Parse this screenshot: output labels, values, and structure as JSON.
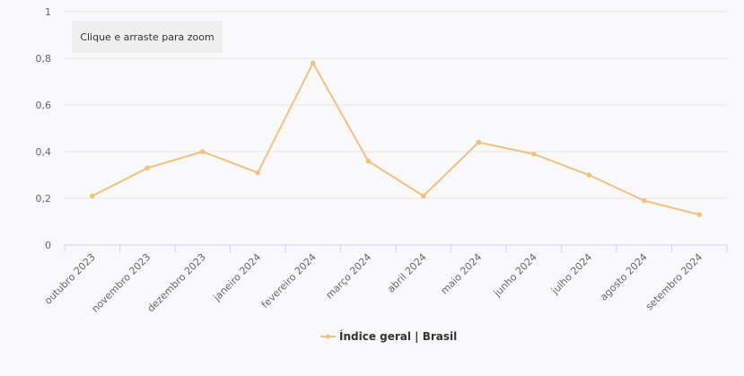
{
  "zoom_hint": "Clique e arraste para zoom",
  "legend": {
    "label": "Índice geral | Brasil"
  },
  "colors": {
    "series": "#f0c27b",
    "grid": "#e6e6e6",
    "axis": "#ccd6eb",
    "tooltip_bg": "#efefef"
  },
  "chart_data": {
    "type": "line",
    "title": "",
    "xlabel": "",
    "ylabel": "",
    "ylim": [
      0,
      1
    ],
    "y_ticks": [
      "0",
      "0,2",
      "0,4",
      "0,6",
      "0,8",
      "1"
    ],
    "y_tick_values": [
      0,
      0.2,
      0.4,
      0.6,
      0.8,
      1
    ],
    "grid": true,
    "legend_position": "bottom-center",
    "categories": [
      "outubro 2023",
      "novembro 2023",
      "dezembro 2023",
      "janeiro 2024",
      "fevereiro 2024",
      "março 2024",
      "abril 2024",
      "maio 2024",
      "junho 2024",
      "julho 2024",
      "agosto 2024",
      "setembro 2024"
    ],
    "series": [
      {
        "name": "Índice geral | Brasil",
        "values": [
          0.21,
          0.33,
          0.4,
          0.31,
          0.78,
          0.36,
          0.21,
          0.44,
          0.39,
          0.3,
          0.19,
          0.13
        ]
      }
    ]
  }
}
